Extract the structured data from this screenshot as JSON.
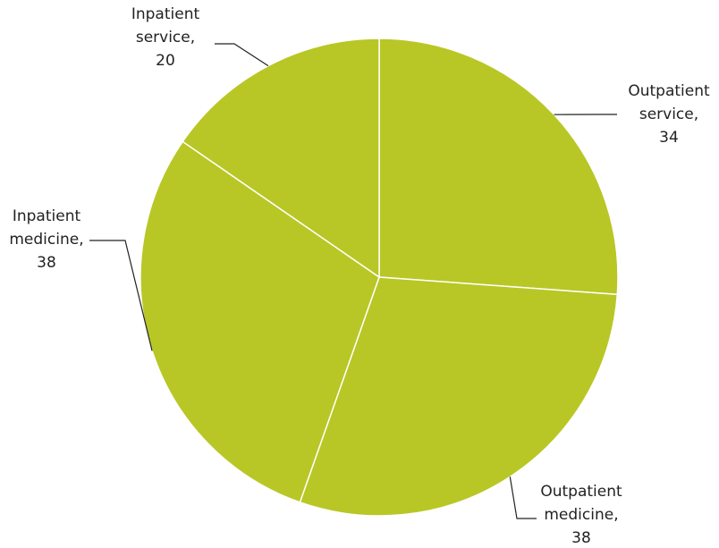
{
  "chart_data": {
    "type": "pie",
    "categories": [
      "Outpatient service,",
      "Outpatient medicine,",
      "Inpatient medicine,",
      "Inpatient service,"
    ],
    "values": [
      34,
      38,
      38,
      20
    ],
    "color": "#b8c725"
  }
}
